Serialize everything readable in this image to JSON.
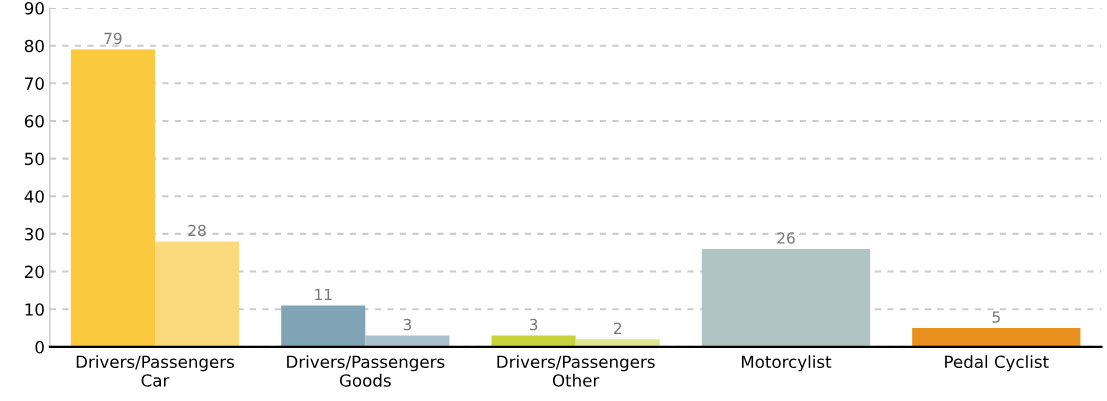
{
  "chart_data": {
    "type": "bar",
    "categories": [
      "Drivers/Passengers\nCar",
      "Drivers/Passengers\nGoods",
      "Drivers/Passengers\nOther",
      "Motorcylist",
      "Pedal Cyclist"
    ],
    "series": [
      {
        "colors": [
          "#fbc93d",
          "#80a3b6",
          "#c8d23a",
          "#b0c4c4",
          "#e8911f"
        ],
        "values": [
          79,
          11,
          3,
          26,
          5
        ]
      },
      {
        "colors": [
          "#fcd97c",
          "#a8bfcc",
          "#dde68a",
          "#b0c4c4",
          "#e8911f"
        ],
        "values": [
          28,
          3,
          2,
          null,
          null
        ]
      }
    ],
    "ylim": [
      0,
      90
    ],
    "yticks": [
      0,
      10,
      20,
      30,
      40,
      50,
      60,
      70,
      80,
      90
    ],
    "grid": "y",
    "data_labels": true
  }
}
